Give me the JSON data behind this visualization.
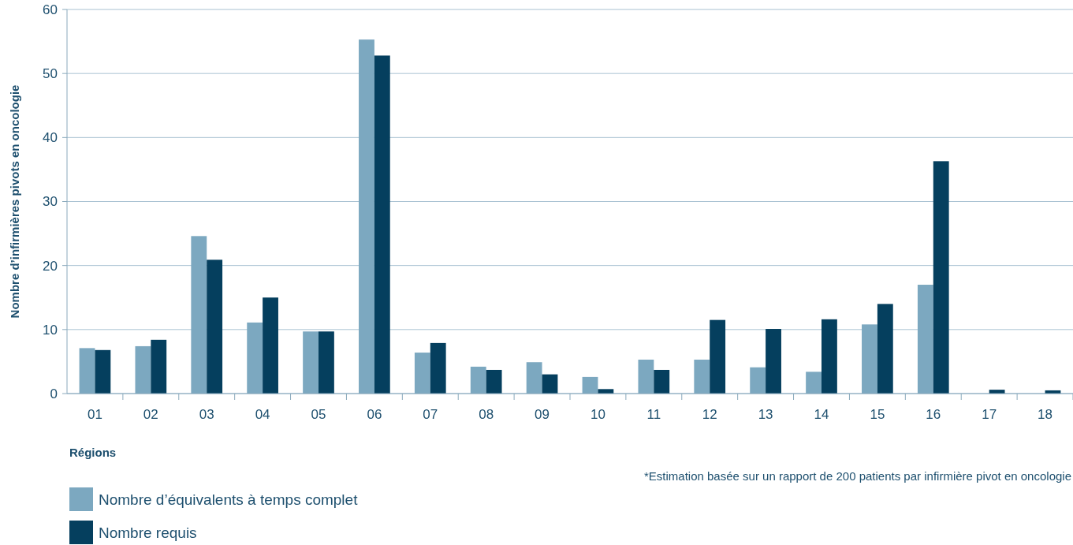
{
  "chart_data": {
    "type": "bar",
    "xlabel": "Régions",
    "ylabel": "Nombre d’infirmières pivots en oncologie",
    "categories": [
      "01",
      "02",
      "03",
      "04",
      "05",
      "06",
      "07",
      "08",
      "09",
      "10",
      "11",
      "12",
      "13",
      "14",
      "15",
      "16",
      "17",
      "18"
    ],
    "series": [
      {
        "name": "Nombre d’équivalents à temps complet",
        "color": "#7ca8c0",
        "values": [
          7.1,
          7.4,
          24.6,
          11.1,
          9.7,
          55.3,
          6.4,
          4.2,
          4.9,
          2.6,
          5.3,
          5.3,
          4.1,
          3.4,
          10.8,
          17.0,
          null,
          null
        ]
      },
      {
        "name": "Nombre requis",
        "color": "#053f5e",
        "values": [
          6.8,
          8.4,
          20.9,
          15.0,
          9.7,
          52.8,
          7.9,
          3.7,
          3.0,
          0.7,
          3.7,
          11.5,
          10.1,
          11.6,
          14.0,
          36.3,
          0.6,
          0.5
        ]
      }
    ],
    "ylim": [
      0,
      60
    ],
    "yticks": [
      0,
      10,
      20,
      30,
      40,
      50,
      60
    ],
    "grid": "y",
    "legend": "bottom left",
    "annotations": [
      "*Estimation basée sur un rapport de 200 patients par infirmière pivot en oncologie"
    ]
  }
}
